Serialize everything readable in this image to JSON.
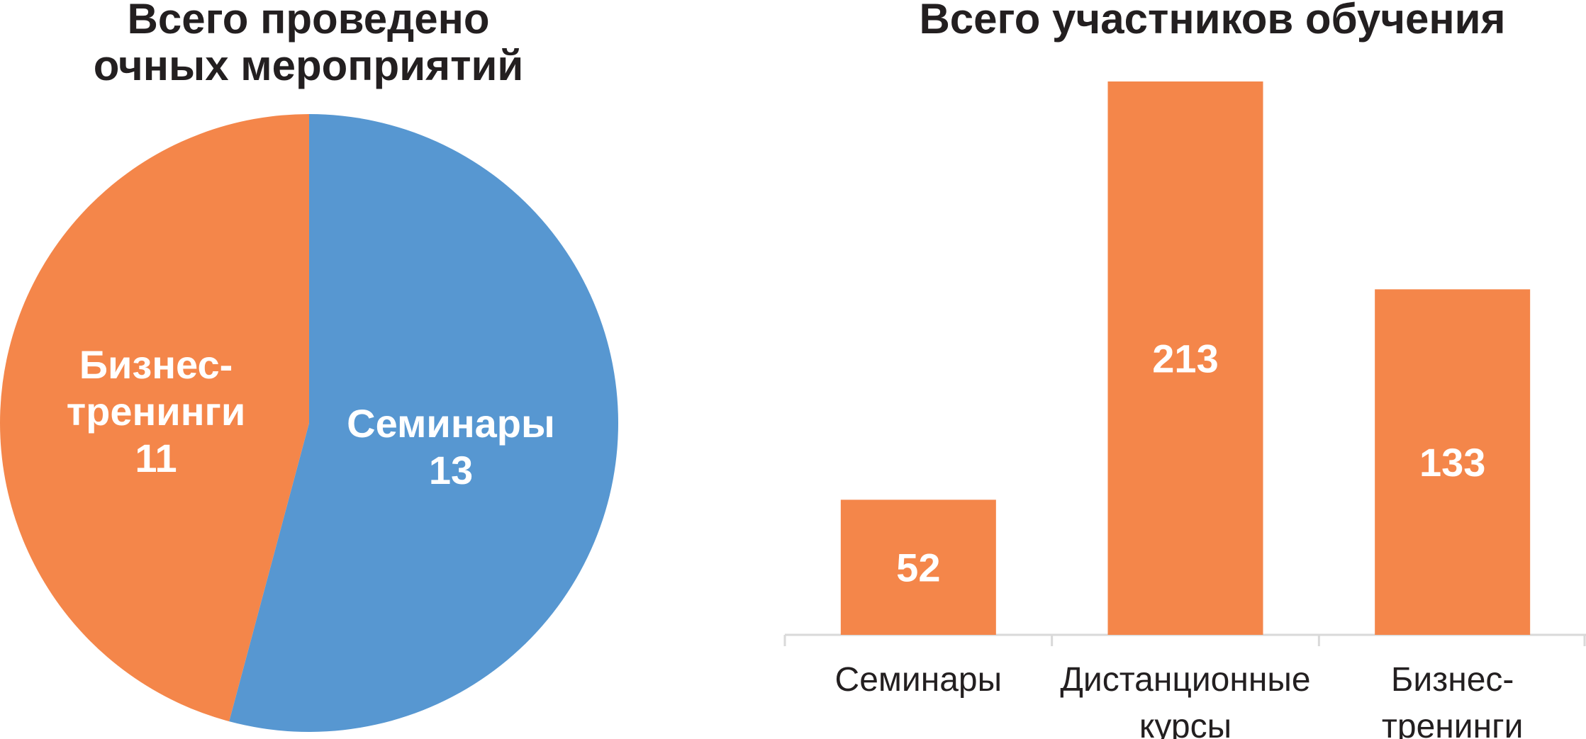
{
  "chart_data": [
    {
      "type": "pie",
      "title": "Всего проведено\nочных мероприятий",
      "slices": [
        {
          "label": "Семинары",
          "value": 13,
          "color": "#5797d1"
        },
        {
          "label": "Бизнес-\nтренинги",
          "value": 11,
          "color": "#f4864a"
        }
      ],
      "legend": "none"
    },
    {
      "type": "bar",
      "title": "Всего участников обучения",
      "categories": [
        "Семинары",
        "Дистанционные\nкурсы",
        "Бизнес-\nтренинги"
      ],
      "values": [
        52,
        213,
        133
      ],
      "color": "#f4864a",
      "ylim": [
        0,
        213
      ],
      "grid": false,
      "legend": "none"
    }
  ]
}
